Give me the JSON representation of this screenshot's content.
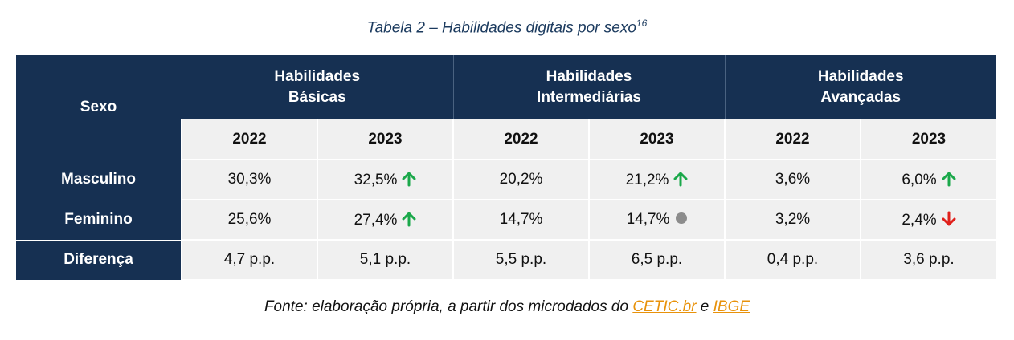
{
  "caption": {
    "title": "Tabela 2 – Habilidades digitais por sexo",
    "footnote": "16"
  },
  "table": {
    "corner_label": "Sexo",
    "groups": [
      {
        "line1": "Habilidades",
        "line2": "Básicas"
      },
      {
        "line1": "Habilidades",
        "line2": "Intermediárias"
      },
      {
        "line1": "Habilidades",
        "line2": "Avançadas"
      }
    ],
    "years": [
      "2022",
      "2023",
      "2022",
      "2023",
      "2022",
      "2023"
    ],
    "rows": [
      {
        "label": "Masculino",
        "cells": [
          {
            "value": "30,3%",
            "indicator": "none"
          },
          {
            "value": "32,5%",
            "indicator": "up"
          },
          {
            "value": "20,2%",
            "indicator": "none"
          },
          {
            "value": "21,2%",
            "indicator": "up"
          },
          {
            "value": "3,6%",
            "indicator": "none"
          },
          {
            "value": "6,0%",
            "indicator": "up"
          }
        ]
      },
      {
        "label": "Feminino",
        "cells": [
          {
            "value": "25,6%",
            "indicator": "none"
          },
          {
            "value": "27,4%",
            "indicator": "up"
          },
          {
            "value": "14,7%",
            "indicator": "none"
          },
          {
            "value": "14,7%",
            "indicator": "neutral"
          },
          {
            "value": "3,2%",
            "indicator": "none"
          },
          {
            "value": "2,4%",
            "indicator": "down"
          }
        ]
      },
      {
        "label": "Diferença",
        "cells": [
          {
            "value": "4,7 p.p.",
            "indicator": "none"
          },
          {
            "value": "5,1 p.p.",
            "indicator": "none"
          },
          {
            "value": "5,5 p.p.",
            "indicator": "none"
          },
          {
            "value": "6,5 p.p.",
            "indicator": "none"
          },
          {
            "value": "0,4 p.p.",
            "indicator": "none"
          },
          {
            "value": "3,6 p.p.",
            "indicator": "none"
          }
        ]
      }
    ]
  },
  "source": {
    "prefix": "Fonte: elaboração própria, a partir dos microdados do",
    "link1": "CETIC.br",
    "connector": "e",
    "link2": "IBGE"
  },
  "colors": {
    "header": "#163052",
    "cell_bg": "#f0f0f0",
    "up": "#1aa84a",
    "down": "#e0201b",
    "neutral": "#8c8c8c",
    "link": "#e8920b"
  }
}
